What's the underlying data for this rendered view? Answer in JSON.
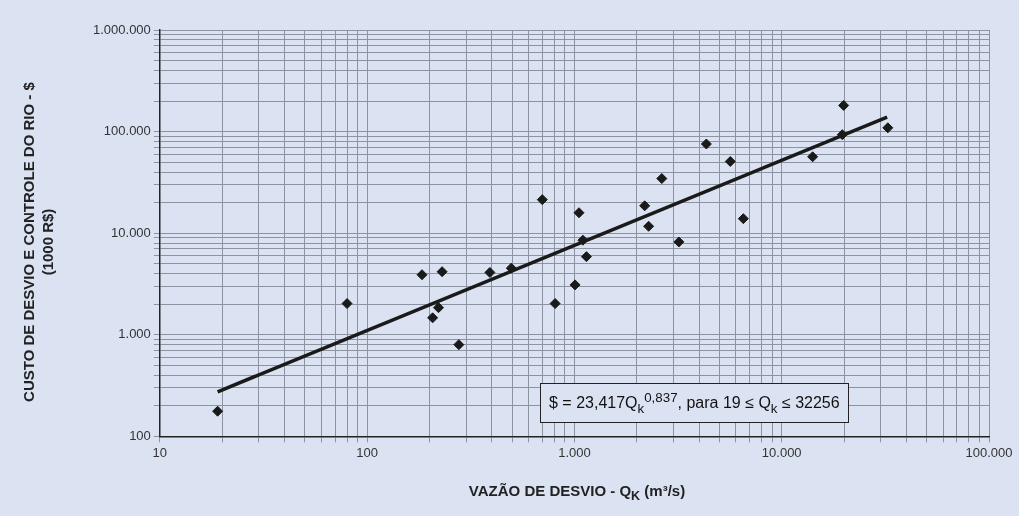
{
  "chart_data": {
    "type": "scatter",
    "xlabel": "VAZÃO DE DESVIO - Q$_{K}$ (m³/s)",
    "ylabel": "CUSTO DE DESVIO E CONTROLE DO RIO - $ (1000 R$)",
    "log": "xy",
    "grid": true,
    "legend": false,
    "marker": "diamond",
    "xlim": [
      10,
      100000
    ],
    "ylim": [
      100,
      1000000
    ],
    "xticks": [
      10,
      {
        "value": 20,
        "label": null
      },
      {
        "value": 30,
        "label": null
      },
      {
        "value": 40,
        "label": null
      },
      {
        "value": 50,
        "label": null
      },
      {
        "value": 60,
        "label": null
      },
      {
        "value": 70,
        "label": null
      },
      {
        "value": 80,
        "label": null
      },
      {
        "value": 90,
        "label": null
      },
      100,
      {
        "value": 200,
        "label": null
      },
      {
        "value": 300,
        "label": null
      },
      {
        "value": 400,
        "label": null
      },
      {
        "value": 500,
        "label": null
      },
      {
        "value": 600,
        "label": null
      },
      {
        "value": 700,
        "label": null
      },
      {
        "value": 800,
        "label": null
      },
      {
        "value": 900,
        "label": null
      },
      {
        "value": 1000,
        "label": "1.000"
      },
      {
        "value": 2000,
        "label": null
      },
      {
        "value": 3000,
        "label": null
      },
      {
        "value": 4000,
        "label": null
      },
      {
        "value": 5000,
        "label": null
      },
      {
        "value": 6000,
        "label": null
      },
      {
        "value": 7000,
        "label": null
      },
      {
        "value": 8000,
        "label": null
      },
      {
        "value": 9000,
        "label": null
      },
      {
        "value": 10000,
        "label": "10.000"
      },
      {
        "value": 20000,
        "label": null
      },
      {
        "value": 30000,
        "label": null
      },
      {
        "value": 40000,
        "label": null
      },
      {
        "value": 50000,
        "label": null
      },
      {
        "value": 60000,
        "label": null
      },
      {
        "value": 70000,
        "label": null
      },
      {
        "value": 80000,
        "label": null
      },
      {
        "value": 90000,
        "label": null
      },
      {
        "value": 100000,
        "label": "100.000"
      }
    ],
    "yticks": [
      100,
      {
        "value": 200,
        "label": null
      },
      {
        "value": 300,
        "label": null
      },
      {
        "value": 400,
        "label": null
      },
      {
        "value": 500,
        "label": null
      },
      {
        "value": 600,
        "label": null
      },
      {
        "value": 700,
        "label": null
      },
      {
        "value": 800,
        "label": null
      },
      {
        "value": 900,
        "label": null
      },
      {
        "value": 1000,
        "label": "1.000"
      },
      {
        "value": 2000,
        "label": null
      },
      {
        "value": 3000,
        "label": null
      },
      {
        "value": 4000,
        "label": null
      },
      {
        "value": 5000,
        "label": null
      },
      {
        "value": 6000,
        "label": null
      },
      {
        "value": 7000,
        "label": null
      },
      {
        "value": 8000,
        "label": null
      },
      {
        "value": 9000,
        "label": null
      },
      {
        "value": 10000,
        "label": "10.000"
      },
      {
        "value": 20000,
        "label": null
      },
      {
        "value": 30000,
        "label": null
      },
      {
        "value": 40000,
        "label": null
      },
      {
        "value": 50000,
        "label": null
      },
      {
        "value": 60000,
        "label": null
      },
      {
        "value": 70000,
        "label": null
      },
      {
        "value": 80000,
        "label": null
      },
      {
        "value": 90000,
        "label": null
      },
      {
        "value": 100000,
        "label": "100.000"
      },
      {
        "value": 200000,
        "label": null
      },
      {
        "value": 300000,
        "label": null
      },
      {
        "value": 400000,
        "label": null
      },
      {
        "value": 500000,
        "label": null
      },
      {
        "value": 600000,
        "label": null
      },
      {
        "value": 700000,
        "label": null
      },
      {
        "value": 800000,
        "label": null
      },
      {
        "value": 900000,
        "label": null
      },
      {
        "value": 1000000,
        "label": "1.000.000"
      }
    ],
    "annotations": [
      "$ = 23,417Q$_{k}$$^{0,837}$, para 19 ≤ Q$_{k}$ ≤ 32256"
    ],
    "series": [
      {
        "color": "#1a1a1a",
        "x": [
          19,
          80,
          184,
          230,
          207,
          221,
          277,
          391,
          496,
          700,
          807,
          1007,
          1052,
          1099,
          1143,
          2183,
          2280,
          2640,
          3190,
          4330,
          5650,
          6530,
          14100,
          19600,
          19900,
          32500
        ],
        "values": [
          177,
          2030,
          3900,
          4180,
          1470,
          1850,
          800,
          4110,
          4530,
          21400,
          2030,
          3100,
          15900,
          8530,
          5880,
          18600,
          11700,
          34500,
          8200,
          75500,
          50800,
          13900,
          56500,
          93300,
          181000,
          109000
        ]
      },
      {
        "type": "line",
        "color": "#1a1a1a",
        "marker": "none",
        "x": [
          19,
          32256
        ],
        "values": [
          275,
          139000
        ]
      }
    ]
  }
}
